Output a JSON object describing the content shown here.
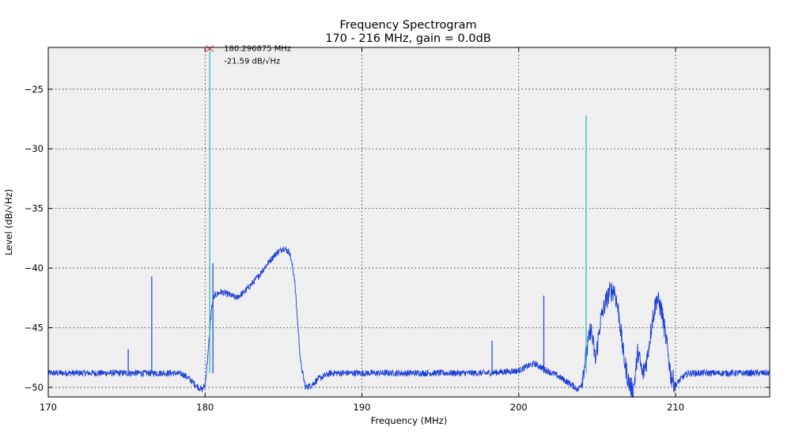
{
  "chart_data": {
    "type": "line",
    "title": "Frequency Spectrogram",
    "subtitle": "170 - 216 MHz, gain = 0.0dB",
    "xlabel": "Frequency (MHz)",
    "ylabel": "Level (dB/√Hz)",
    "xlim": [
      170,
      216
    ],
    "ylim": [
      -50.8,
      -21.5
    ],
    "x_ticks": [
      170,
      180,
      190,
      200,
      210
    ],
    "y_ticks": [
      -25,
      -30,
      -35,
      -40,
      -45,
      -50
    ],
    "x_tick_labels": [
      "170",
      "180",
      "190",
      "200",
      "210"
    ],
    "y_tick_labels": [
      "−25",
      "−30",
      "−35",
      "−40",
      "−45",
      "−50"
    ],
    "grid": true,
    "background": "#efefef",
    "series": [
      {
        "color": "#1a3fd6",
        "x": [
          170.0,
          171.0,
          172.0,
          173.0,
          174.0,
          175.0,
          176.0,
          177.0,
          178.0,
          178.6,
          179.0,
          179.4,
          179.8,
          180.0,
          180.2,
          180.4,
          180.6,
          181.0,
          181.5,
          182.0,
          182.5,
          183.0,
          183.5,
          184.0,
          184.5,
          185.0,
          185.4,
          185.7,
          185.9,
          186.1,
          186.4,
          186.8,
          187.2,
          188.0,
          189.0,
          190.0,
          192.0,
          194.0,
          196.0,
          198.0,
          199.0,
          200.0,
          200.6,
          201.0,
          201.4,
          201.8,
          202.3,
          202.8,
          203.4,
          203.8,
          204.0,
          204.3,
          204.6,
          204.9,
          205.2,
          205.5,
          205.8,
          206.1,
          206.4,
          206.7,
          207.0,
          207.3,
          207.6,
          207.9,
          208.2,
          208.5,
          208.8,
          209.1,
          209.4,
          209.7,
          210.0,
          210.4,
          210.8,
          211.5,
          212.5,
          213.5,
          214.5,
          215.5,
          216.0
        ],
        "y": [
          -48.8,
          -48.8,
          -48.8,
          -48.8,
          -48.8,
          -48.8,
          -48.8,
          -48.8,
          -48.8,
          -48.9,
          -49.3,
          -49.8,
          -50.2,
          -49.8,
          -47.0,
          -43.5,
          -42.3,
          -42.0,
          -42.2,
          -42.5,
          -42.0,
          -41.3,
          -40.5,
          -39.6,
          -38.8,
          -38.3,
          -38.7,
          -40.8,
          -44.5,
          -48.0,
          -50.0,
          -49.8,
          -49.3,
          -48.8,
          -48.8,
          -48.8,
          -48.8,
          -48.8,
          -48.8,
          -48.8,
          -48.7,
          -48.6,
          -48.2,
          -48.0,
          -48.3,
          -48.6,
          -48.9,
          -49.3,
          -49.8,
          -50.2,
          -49.6,
          -47.3,
          -45.0,
          -47.8,
          -44.5,
          -43.0,
          -42.0,
          -41.8,
          -44.0,
          -47.5,
          -49.5,
          -50.4,
          -47.0,
          -49.0,
          -47.5,
          -44.5,
          -42.5,
          -43.5,
          -46.0,
          -49.0,
          -49.8,
          -49.2,
          -48.8,
          -48.8,
          -48.8,
          -48.8,
          -48.8,
          -48.8,
          -48.8
        ]
      }
    ],
    "spikes": [
      {
        "x": 175.1,
        "y": -46.8,
        "color": "#1a3fd6"
      },
      {
        "x": 176.6,
        "y": -40.7,
        "color": "#1a3fd6"
      },
      {
        "x": 180.297,
        "y": -21.59,
        "color": "#2ab5b5"
      },
      {
        "x": 180.5,
        "y": -39.6,
        "color": "#1a3fd6"
      },
      {
        "x": 198.3,
        "y": -46.1,
        "color": "#1a3fd6"
      },
      {
        "x": 201.6,
        "y": -42.3,
        "color": "#1a3fd6"
      },
      {
        "x": 204.3,
        "y": -27.2,
        "color": "#2ab5b5"
      }
    ],
    "annotation": {
      "x": 180.296875,
      "y": -21.59,
      "freq_text": "180.296875 MHz",
      "level_text": "-21.59 dB/√Hz",
      "marker_color": "#e03030"
    }
  }
}
